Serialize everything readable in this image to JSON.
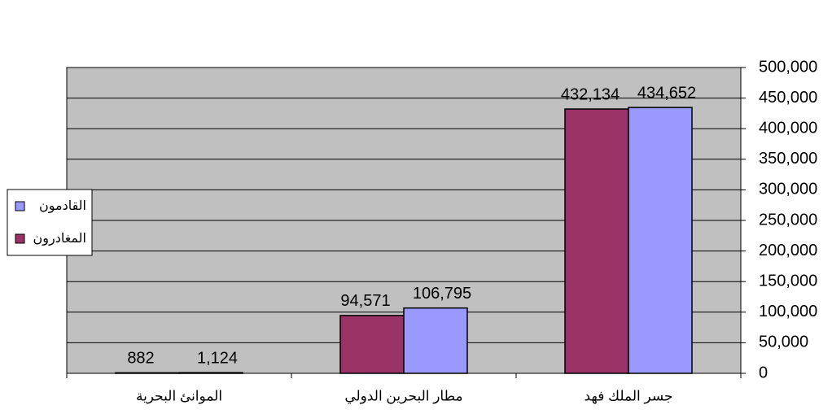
{
  "chart_data": {
    "type": "bar",
    "categories": [
      "الموانئ البحرية",
      "مطار البحرين الدولي",
      "جسر الملك فهد"
    ],
    "series": [
      {
        "name": "المغادرون",
        "color": "#993366",
        "values": [
          882,
          94571,
          432134
        ],
        "value_labels": [
          "882",
          "94,571",
          "432,134"
        ]
      },
      {
        "name": "القادمون",
        "color": "#9999ff",
        "values": [
          1124,
          106795,
          434652
        ],
        "value_labels": [
          "1,124",
          "106,795",
          "434,652"
        ]
      }
    ],
    "ylim": [
      0,
      500000
    ],
    "yticks": [
      0,
      {
        "value": 50000,
        "label": "50,000"
      },
      {
        "value": 100000,
        "label": "100,000"
      },
      {
        "value": 150000,
        "label": "150,000"
      },
      {
        "value": 200000,
        "label": "200,000"
      },
      {
        "value": 250000,
        "label": "250,000"
      },
      {
        "value": 300000,
        "label": "300,000"
      },
      {
        "value": 350000,
        "label": "350,000"
      },
      {
        "value": 400000,
        "label": "400,000"
      },
      {
        "value": 450000,
        "label": "450,000"
      },
      {
        "value": 500000,
        "label": "500,000"
      }
    ],
    "grid": true,
    "plot_background": "#c0c0c0",
    "legend": "left"
  }
}
